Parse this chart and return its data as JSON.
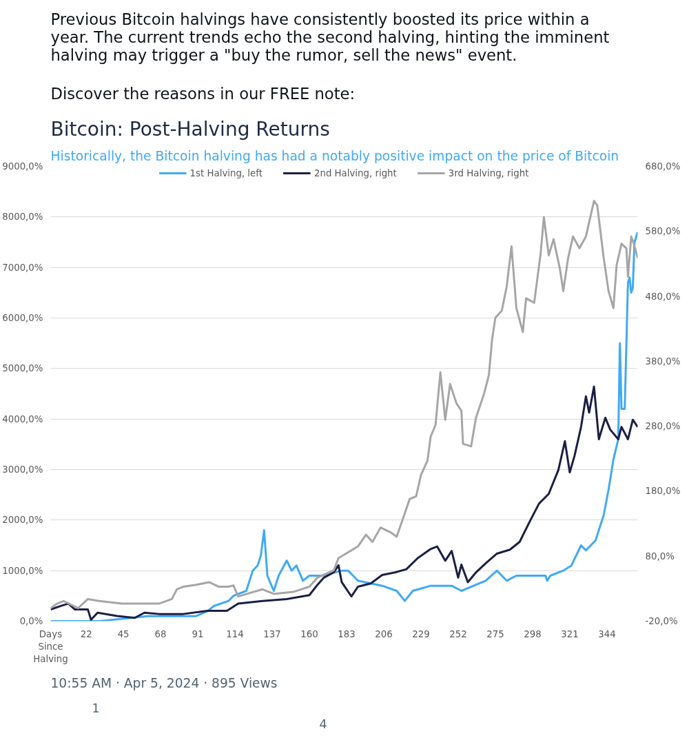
{
  "chart_data": {
    "type": "line",
    "title": "Bitcoin: Post-Halving Returns",
    "subtitle": "Historically, the Bitcoin halving has had a notably positive impact on the price of Bitcoin",
    "annotations": [
      "Previous Bitcoin halvings have consistently boosted its price within a year. The current trends echo the second halving, hinting the imminent halving may trigger a \"buy the rumor, sell the news\" event.",
      "Discover the reasons in our FREE note:",
      "10:55 AM · Apr 5, 2024 · 895 Views",
      "1",
      "4"
    ],
    "xlim": [
      0,
      363
    ],
    "xticks": [
      {
        "value": 0,
        "label": "Days Since Halving"
      },
      22,
      45,
      68,
      91,
      114,
      137,
      160,
      183,
      206,
      229,
      252,
      275,
      298,
      321,
      344
    ],
    "ylim": [
      0,
      9000
    ],
    "yticks": [
      {
        "value": 0,
        "label": "0,0%"
      },
      {
        "value": 1000,
        "label": "1000,0%"
      },
      {
        "value": 2000,
        "label": "2000,0%"
      },
      {
        "value": 3000,
        "label": "3000,0%"
      },
      {
        "value": 4000,
        "label": "4000,0%"
      },
      {
        "value": 5000,
        "label": "5000,0%"
      },
      {
        "value": 6000,
        "label": "6000,0%"
      },
      {
        "value": 7000,
        "label": "7000,0%"
      },
      {
        "value": 8000,
        "label": "8000,0%"
      },
      {
        "value": 9000,
        "label": "9000,0%"
      }
    ],
    "y2lim": [
      -20,
      680
    ],
    "y2ticks": [
      {
        "value": -20,
        "label": "-20,0%"
      },
      {
        "value": 80,
        "label": "80,0%"
      },
      {
        "value": 180,
        "label": "180,0%"
      },
      {
        "value": 280,
        "label": "280,0%"
      },
      {
        "value": 380,
        "label": "380,0%"
      },
      {
        "value": 480,
        "label": "480,0%"
      },
      {
        "value": 580,
        "label": "580,0%"
      },
      {
        "value": 680,
        "label": "680,0%"
      }
    ],
    "grid": "y",
    "legend": "top",
    "marker": "none",
    "line_style": "solid",
    "series": [
      {
        "name": "1st Halving, left",
        "color": "#3fa9f5",
        "x": [
          0,
          30,
          60,
          90,
          97,
          101,
          110,
          113,
          121,
          125,
          128,
          130,
          132,
          134,
          138,
          141,
          146,
          149,
          152,
          156,
          160,
          168,
          180,
          184,
          190,
          205,
          214,
          219,
          224,
          235,
          248,
          254,
          269,
          276,
          282,
          288,
          299,
          306,
          307,
          309,
          317,
          322,
          328,
          331,
          337,
          342,
          345,
          348,
          351,
          352,
          353,
          355,
          357,
          358,
          359,
          360,
          361,
          363
        ],
        "values": [
          0,
          0,
          100,
          100,
          200,
          300,
          400,
          500,
          600,
          1000,
          1100,
          1300,
          1800,
          900,
          600,
          900,
          1200,
          1000,
          1100,
          800,
          900,
          900,
          1000,
          1000,
          800,
          700,
          600,
          400,
          600,
          700,
          700,
          600,
          800,
          1000,
          800,
          900,
          900,
          900,
          800,
          900,
          1000,
          1100,
          1500,
          1400,
          1600,
          2100,
          2600,
          3200,
          3600,
          5500,
          4200,
          4200,
          6700,
          6800,
          6500,
          6600,
          7500,
          7700
        ]
      },
      {
        "name": "2nd Halving, right",
        "color": "#1b1f45",
        "axis": "y2",
        "x": [
          0,
          7,
          11,
          15,
          23,
          25,
          29,
          41,
          52,
          58,
          67,
          82,
          97,
          103,
          109,
          116,
          131,
          146,
          160,
          165,
          169,
          175,
          178,
          180,
          186,
          190,
          198,
          205,
          213,
          220,
          227,
          235,
          239,
          244,
          248,
          252,
          254,
          258,
          263,
          269,
          276,
          284,
          290,
          296,
          302,
          308,
          314,
          318,
          321,
          324,
          328,
          331,
          333,
          336,
          339,
          343,
          346,
          351,
          353,
          357,
          360,
          363
        ],
        "values": [
          -2,
          4,
          7,
          -2,
          -2,
          -18,
          -7,
          -12,
          -15,
          -7,
          -9,
          -9,
          -4,
          -4,
          -4,
          7,
          11,
          14,
          20,
          36,
          47,
          55,
          66,
          40,
          18,
          33,
          38,
          51,
          55,
          60,
          77,
          91,
          95,
          73,
          88,
          47,
          67,
          40,
          55,
          69,
          84,
          90,
          102,
          132,
          161,
          176,
          213,
          257,
          209,
          235,
          279,
          326,
          301,
          341,
          260,
          293,
          275,
          260,
          279,
          260,
          290,
          279
        ]
      },
      {
        "name": "3rd Halving, right",
        "color": "#a6a6a6",
        "axis": "y2",
        "x": [
          0,
          4,
          8,
          17,
          23,
          30,
          44,
          52,
          67,
          75,
          78,
          82,
          90,
          98,
          104,
          110,
          113,
          116,
          131,
          138,
          150,
          160,
          165,
          175,
          178,
          190,
          195,
          199,
          204,
          210,
          214,
          219,
          222,
          226,
          229,
          233,
          235,
          238,
          241,
          244,
          247,
          251,
          254,
          255,
          260,
          263,
          268,
          271,
          273,
          275,
          279,
          282,
          285,
          288,
          292,
          294,
          299,
          303,
          305,
          308,
          311,
          315,
          317,
          320,
          323,
          327,
          331,
          336,
          338,
          342,
          345,
          348,
          350,
          353,
          356,
          357,
          359,
          361,
          363
        ],
        "values": [
          0,
          7,
          11,
          0,
          14,
          11,
          7,
          7,
          7,
          14,
          29,
          33,
          36,
          40,
          33,
          33,
          35,
          18,
          29,
          22,
          25,
          33,
          47,
          58,
          77,
          95,
          113,
          102,
          124,
          117,
          110,
          146,
          168,
          172,
          205,
          227,
          264,
          282,
          363,
          290,
          345,
          315,
          304,
          253,
          249,
          293,
          330,
          359,
          414,
          447,
          458,
          495,
          557,
          462,
          425,
          477,
          470,
          546,
          602,
          543,
          568,
          521,
          488,
          539,
          572,
          554,
          572,
          627,
          620,
          539,
          488,
          462,
          528,
          561,
          554,
          510,
          572,
          558,
          539
        ]
      }
    ]
  }
}
